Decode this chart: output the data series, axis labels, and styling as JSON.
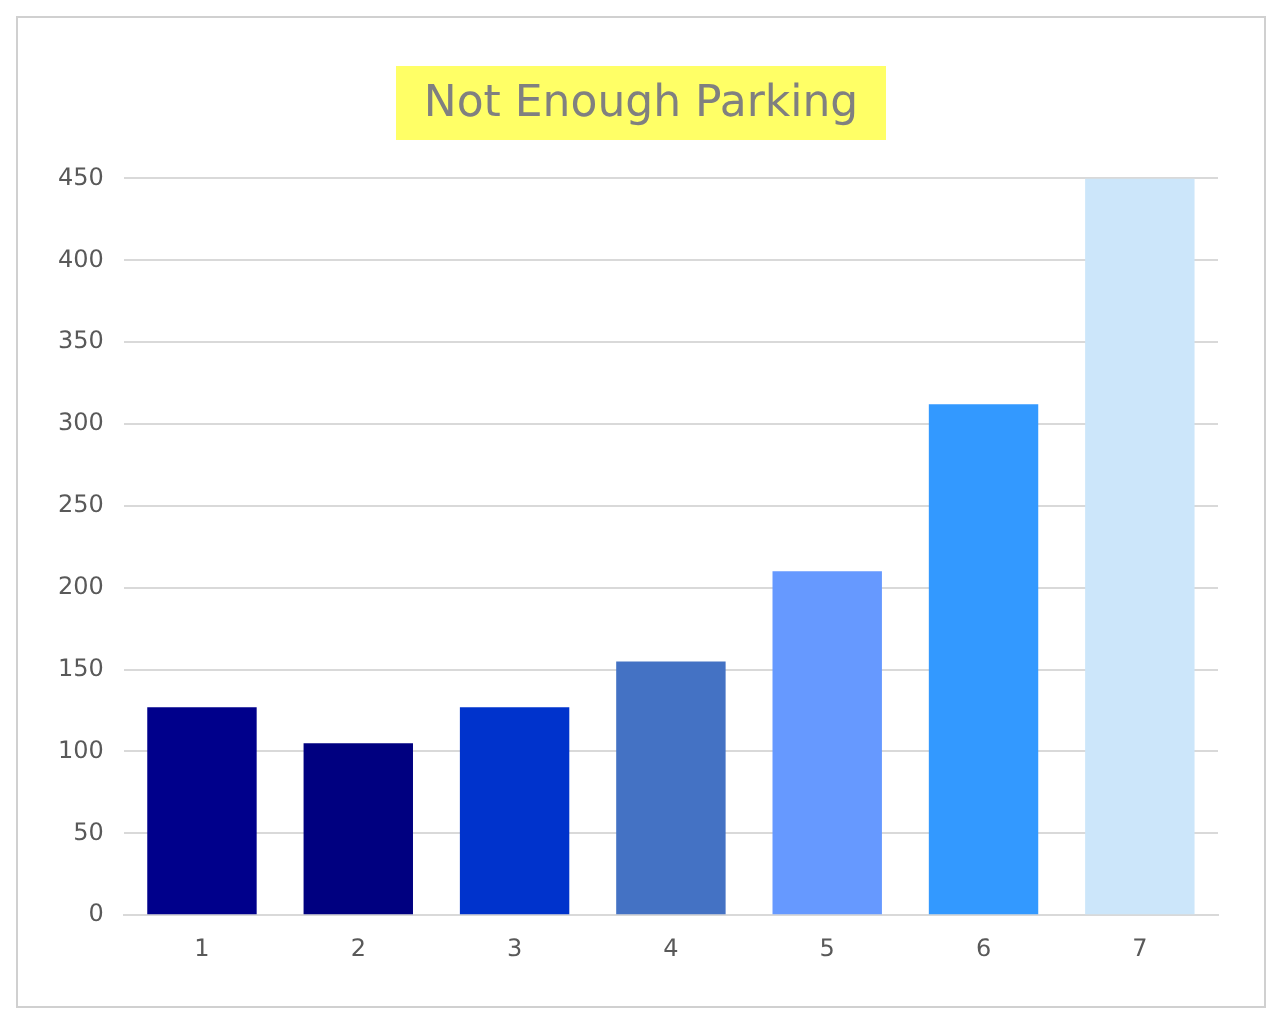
{
  "chart_data": {
    "type": "bar",
    "title": "Not Enough Parking",
    "categories": [
      "1",
      "2",
      "3",
      "4",
      "5",
      "6",
      "7"
    ],
    "values": [
      127,
      105,
      127,
      155,
      210,
      312,
      450
    ],
    "colors": [
      "#00008b",
      "#000080",
      "#0033cc",
      "#4472c4",
      "#6699ff",
      "#3399ff",
      "#cce6fa"
    ],
    "ylim": [
      0,
      450
    ],
    "yticks": [
      0,
      50,
      100,
      150,
      200,
      250,
      300,
      350,
      400,
      450
    ],
    "grid": "y",
    "legend": false
  }
}
